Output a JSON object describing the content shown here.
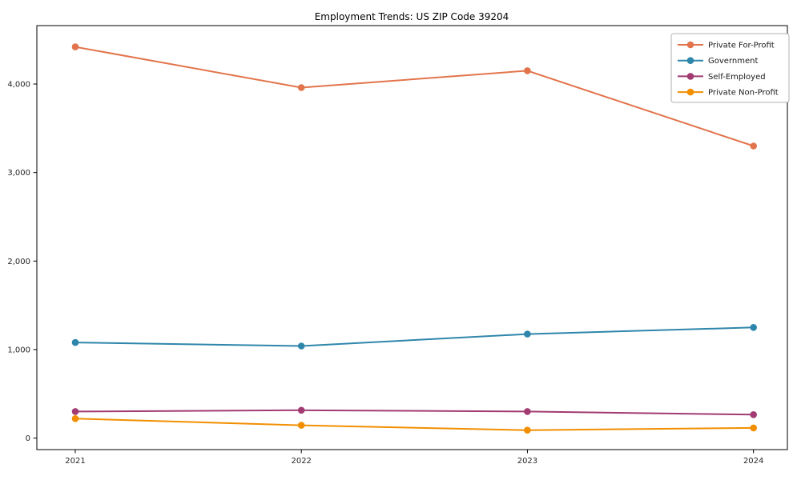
{
  "chart_data": {
    "type": "line",
    "title": "Employment Trends: US ZIP Code 39204",
    "xlabel": "",
    "ylabel": "",
    "x": [
      2021,
      2022,
      2023,
      2024
    ],
    "categories": [
      "2021",
      "2022",
      "2023",
      "2024"
    ],
    "series": [
      {
        "name": "Private For-Profit",
        "color": "#E2744B",
        "values": [
          4420,
          3960,
          4150,
          3300
        ]
      },
      {
        "name": "Government",
        "color": "#2E86AB",
        "values": [
          1080,
          1040,
          1175,
          1250
        ]
      },
      {
        "name": "Self-Employed",
        "color": "#A23B72",
        "values": [
          300,
          315,
          300,
          265
        ]
      },
      {
        "name": "Private Non-Profit",
        "color": "#F18F01",
        "values": [
          220,
          145,
          90,
          115
        ]
      }
    ],
    "yticks": [
      {
        "value": 0,
        "label": "0"
      },
      {
        "value": 1000,
        "label": "1,000"
      },
      {
        "value": 2000,
        "label": "2,000"
      },
      {
        "value": 3000,
        "label": "3,000"
      },
      {
        "value": 4000,
        "label": "4,000"
      }
    ],
    "xlim": [
      2020.83,
      2024.15
    ],
    "ylim": [
      -130,
      4660
    ],
    "grid": false,
    "legend_position": "upper right",
    "frame_color": "#000000",
    "legend_border_color": "#b0b0b0",
    "background_color": "#ffffff"
  }
}
